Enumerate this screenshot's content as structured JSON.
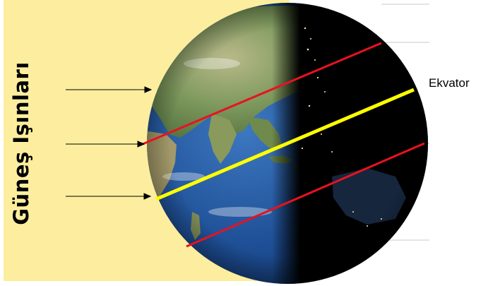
{
  "labels": {
    "sun_rays": "Güneş Işınları",
    "equator": "Ekvator"
  },
  "colors": {
    "sunlight_background": "#fcee9e",
    "equator_line": "#ffff00",
    "tropic_lines": "#e8121f",
    "night_side": "#000000",
    "ray_arrows": "#000000"
  },
  "icons": {
    "sun_ray_arrow": "right-arrow",
    "earth_globe": "globe"
  },
  "ray_arrow_count": 3,
  "latitude_lines": [
    "tropic-north",
    "equator",
    "tropic-south"
  ]
}
